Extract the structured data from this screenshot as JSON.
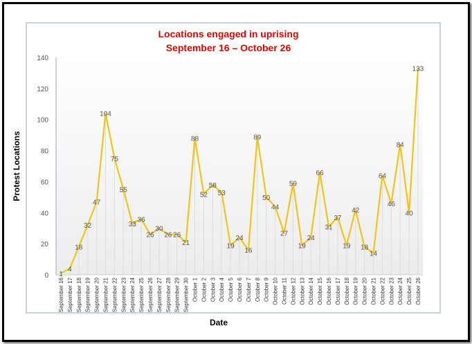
{
  "chart_data": {
    "type": "line",
    "title": "Locations engaged in uprising",
    "subtitle": "September 16 – October 26",
    "xlabel": "Date",
    "ylabel": "Protest Locations",
    "ylim": [
      0,
      140
    ],
    "yticks": [
      0,
      20,
      40,
      60,
      80,
      100,
      120,
      140
    ],
    "grid": false,
    "data_labels": true,
    "series_color": "#f0c419",
    "categories": [
      "September 16",
      "September 17",
      "September 18",
      "September 19",
      "September 20",
      "September 21",
      "September 22",
      "September 23",
      "September 24",
      "September 25",
      "September 26",
      "September 27",
      "September 28",
      "September 29",
      "September 30",
      "October 1",
      "October 2",
      "October 3",
      "October 4",
      "October 5",
      "October 6",
      "October 7",
      "October 8",
      "October 9",
      "October 10",
      "October 11",
      "October 12",
      "October 13",
      "October 14",
      "October 15",
      "October 16",
      "October 17",
      "October 18",
      "October 19",
      "October 20",
      "October 21",
      "October 22",
      "October 23",
      "October 24",
      "October 25",
      "October 26"
    ],
    "values": [
      1,
      4,
      18,
      32,
      47,
      104,
      75,
      55,
      33,
      36,
      26,
      30,
      26,
      26,
      21,
      88,
      52,
      58,
      53,
      19,
      24,
      16,
      89,
      50,
      44,
      27,
      59,
      19,
      24,
      66,
      31,
      37,
      19,
      42,
      18,
      14,
      64,
      46,
      84,
      40,
      133
    ]
  }
}
